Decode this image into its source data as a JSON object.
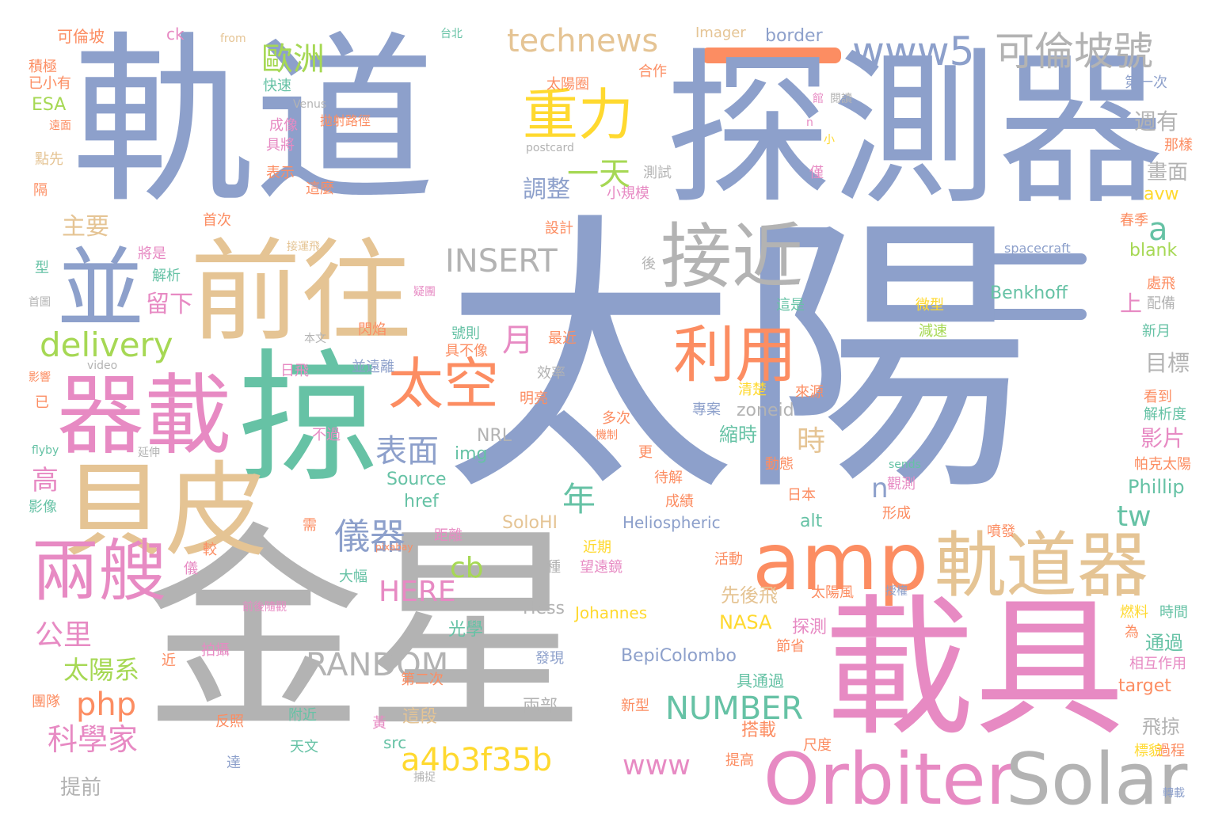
{
  "colors": {
    "blue": "#8da0cb",
    "gray": "#b3b3b3",
    "tan": "#e5c494",
    "teal": "#66c2a5",
    "pink": "#e78ac3",
    "orange": "#fc8d62",
    "yellow": "#ffd92f",
    "green": "#a6d854"
  },
  "words": [
    {
      "text": "太陽",
      "color": "blue"
    },
    {
      "text": "軌道",
      "color": "blue"
    },
    {
      "text": "探測器",
      "color": "blue"
    },
    {
      "text": "金星",
      "color": "gray"
    },
    {
      "text": "載具",
      "color": "pink"
    },
    {
      "text": "掠",
      "color": "teal"
    },
    {
      "text": "前往",
      "color": "tan"
    },
    {
      "text": "貝皮",
      "color": "tan"
    },
    {
      "text": "器載",
      "color": "pink"
    },
    {
      "text": "並",
      "color": "blue"
    },
    {
      "text": "接近",
      "color": "gray"
    },
    {
      "text": "amp",
      "color": "orange"
    },
    {
      "text": "軌道器",
      "color": "tan"
    },
    {
      "text": "Orbiter",
      "color": "pink"
    },
    {
      "text": "Solar",
      "color": "gray"
    },
    {
      "text": "兩艘",
      "color": "pink"
    },
    {
      "text": "利用",
      "color": "orange"
    },
    {
      "text": "太空",
      "color": "orange"
    },
    {
      "text": "重力",
      "color": "yellow"
    },
    {
      "text": "一天",
      "color": "green"
    },
    {
      "text": "www5",
      "color": "blue"
    },
    {
      "text": "可倫坡號",
      "color": "gray"
    },
    {
      "text": "technews",
      "color": "tan"
    },
    {
      "text": "歐洲",
      "color": "green"
    },
    {
      "text": "delivery",
      "color": "green"
    },
    {
      "text": "INSERT",
      "color": "gray"
    },
    {
      "text": "表面",
      "color": "blue"
    },
    {
      "text": "儀器",
      "color": "blue"
    },
    {
      "text": "a4b3f35b",
      "color": "yellow"
    },
    {
      "text": "RANDOM",
      "color": "gray"
    },
    {
      "text": "NUMBER",
      "color": "teal"
    },
    {
      "text": "www",
      "color": "pink"
    },
    {
      "text": "HERE",
      "color": "pink"
    },
    {
      "text": "php",
      "color": "orange"
    },
    {
      "text": "cb",
      "color": "green"
    },
    {
      "text": "科學家",
      "color": "pink"
    },
    {
      "text": "公里",
      "color": "pink"
    },
    {
      "text": "太陽系",
      "color": "green"
    },
    {
      "text": "年",
      "color": "teal"
    },
    {
      "text": "tw",
      "color": "teal"
    },
    {
      "text": "a",
      "color": "teal"
    },
    {
      "text": "n",
      "color": "blue"
    },
    {
      "text": "時",
      "color": "tan"
    },
    {
      "text": "月",
      "color": "pink"
    },
    {
      "text": "調整",
      "color": "blue"
    },
    {
      "text": "主要",
      "color": "tan"
    },
    {
      "text": "留下",
      "color": "pink"
    },
    {
      "text": "高",
      "color": "pink"
    },
    {
      "text": "週有",
      "color": "gray"
    },
    {
      "text": "畫面",
      "color": "gray"
    },
    {
      "text": "目標",
      "color": "gray"
    },
    {
      "text": "影片",
      "color": "pink"
    },
    {
      "text": "上",
      "color": "pink"
    },
    {
      "text": "Benkhoff",
      "color": "teal"
    },
    {
      "text": "spacecraft",
      "color": "blue"
    },
    {
      "text": "blank",
      "color": "green"
    },
    {
      "text": "Phillip",
      "color": "teal"
    },
    {
      "text": "BepiColombo",
      "color": "blue"
    },
    {
      "text": "Heliospheric",
      "color": "blue"
    },
    {
      "text": "SoloHI",
      "color": "tan"
    },
    {
      "text": "Source",
      "color": "teal"
    },
    {
      "text": "href",
      "color": "teal"
    },
    {
      "text": "img",
      "color": "teal"
    },
    {
      "text": "zoneid",
      "color": "gray"
    },
    {
      "text": "縮時",
      "color": "teal"
    },
    {
      "text": "Johannes",
      "color": "yellow"
    },
    {
      "text": "Hess",
      "color": "gray"
    },
    {
      "text": "NASA",
      "color": "yellow"
    },
    {
      "text": "探測",
      "color": "pink"
    },
    {
      "text": "先後飛",
      "color": "tan"
    },
    {
      "text": "光學",
      "color": "teal"
    },
    {
      "text": "target",
      "color": "orange"
    },
    {
      "text": "飛掠",
      "color": "gray"
    },
    {
      "text": "通過",
      "color": "teal"
    },
    {
      "text": "提前",
      "color": "gray"
    },
    {
      "text": "這段",
      "color": "tan"
    },
    {
      "text": "搭載",
      "color": "orange"
    },
    {
      "text": "具通過",
      "color": "teal"
    },
    {
      "text": "兩部",
      "color": "gray"
    },
    {
      "text": "alt",
      "color": "teal"
    },
    {
      "text": "src",
      "color": "teal"
    },
    {
      "text": "border",
      "color": "blue"
    },
    {
      "text": "Imager",
      "color": "tan"
    },
    {
      "text": "ck",
      "color": "pink"
    },
    {
      "text": "可倫坡",
      "color": "orange"
    },
    {
      "text": "ESA",
      "color": "green"
    },
    {
      "text": "avw",
      "color": "yellow"
    },
    {
      "text": "postcard",
      "color": "gray"
    },
    {
      "text": "Venus",
      "color": "gray"
    },
    {
      "text": "NRL",
      "color": "gray"
    },
    {
      "text": "video",
      "color": "gray"
    },
    {
      "text": "pixabay",
      "color": "orange"
    },
    {
      "text": "sends",
      "color": "teal"
    },
    {
      "text": "flyby",
      "color": "teal"
    },
    {
      "text": "from",
      "color": "tan"
    },
    {
      "text": "台北",
      "color": "teal"
    },
    {
      "text": "太陽圈",
      "color": "orange"
    },
    {
      "text": "合作",
      "color": "orange"
    },
    {
      "text": "快速",
      "color": "teal"
    },
    {
      "text": "成像",
      "color": "pink"
    },
    {
      "text": "拋射路徑",
      "color": "orange"
    },
    {
      "text": "具將",
      "color": "pink"
    },
    {
      "text": "表示",
      "color": "orange"
    },
    {
      "text": "這麼",
      "color": "orange"
    },
    {
      "text": "小規模",
      "color": "pink"
    },
    {
      "text": "測試",
      "color": "gray"
    },
    {
      "text": "首次",
      "color": "orange"
    },
    {
      "text": "設計",
      "color": "orange"
    },
    {
      "text": "解析",
      "color": "teal"
    },
    {
      "text": "將是",
      "color": "pink"
    },
    {
      "text": "第一次",
      "color": "blue"
    },
    {
      "text": "那樣",
      "color": "orange"
    },
    {
      "text": "春季",
      "color": "orange"
    },
    {
      "text": "處飛",
      "color": "orange"
    },
    {
      "text": "配備",
      "color": "gray"
    },
    {
      "text": "新月",
      "color": "teal"
    },
    {
      "text": "看到",
      "color": "orange"
    },
    {
      "text": "解析度",
      "color": "teal"
    },
    {
      "text": "帕克太陽",
      "color": "orange"
    },
    {
      "text": "時間",
      "color": "teal"
    },
    {
      "text": "相互作用",
      "color": "pink"
    },
    {
      "text": "過程",
      "color": "orange"
    },
    {
      "text": "標貌",
      "color": "yellow"
    },
    {
      "text": "轉載",
      "color": "blue"
    },
    {
      "text": "燃料",
      "color": "yellow"
    },
    {
      "text": "為",
      "color": "orange"
    },
    {
      "text": "授權",
      "color": "blue"
    },
    {
      "text": "太陽風",
      "color": "orange"
    },
    {
      "text": "節省",
      "color": "orange"
    },
    {
      "text": "尺度",
      "color": "orange"
    },
    {
      "text": "提高",
      "color": "orange"
    },
    {
      "text": "捕捉",
      "color": "gray"
    },
    {
      "text": "天文",
      "color": "teal"
    },
    {
      "text": "附近",
      "color": "teal"
    },
    {
      "text": "反照",
      "color": "orange"
    },
    {
      "text": "第二次",
      "color": "orange"
    },
    {
      "text": "新型",
      "color": "orange"
    },
    {
      "text": "發現",
      "color": "blue"
    },
    {
      "text": "拍攝",
      "color": "pink"
    },
    {
      "text": "近",
      "color": "orange"
    },
    {
      "text": "團隊",
      "color": "orange"
    },
    {
      "text": "達",
      "color": "blue"
    },
    {
      "text": "黃",
      "color": "pink"
    },
    {
      "text": "一種",
      "color": "gray"
    },
    {
      "text": "望遠鏡",
      "color": "pink"
    },
    {
      "text": "前後隨觀",
      "color": "pink"
    },
    {
      "text": "大幅",
      "color": "teal"
    },
    {
      "text": "距離",
      "color": "pink"
    },
    {
      "text": "近期",
      "color": "yellow"
    },
    {
      "text": "需",
      "color": "orange"
    },
    {
      "text": "較",
      "color": "orange"
    },
    {
      "text": "儀",
      "color": "pink"
    },
    {
      "text": "活動",
      "color": "orange"
    },
    {
      "text": "噴發",
      "color": "orange"
    },
    {
      "text": "形成",
      "color": "orange"
    },
    {
      "text": "日本",
      "color": "orange"
    },
    {
      "text": "觀測",
      "color": "pink"
    },
    {
      "text": "成績",
      "color": "orange"
    },
    {
      "text": "待解",
      "color": "orange"
    },
    {
      "text": "更",
      "color": "orange"
    },
    {
      "text": "機制",
      "color": "orange"
    },
    {
      "text": "多次",
      "color": "orange"
    },
    {
      "text": "不過",
      "color": "pink"
    },
    {
      "text": "動態",
      "color": "orange"
    },
    {
      "text": "專案",
      "color": "blue"
    },
    {
      "text": "清楚",
      "color": "yellow"
    },
    {
      "text": "來源",
      "color": "orange"
    },
    {
      "text": "效率",
      "color": "gray"
    },
    {
      "text": "明亮",
      "color": "orange"
    },
    {
      "text": "並遠離",
      "color": "blue"
    },
    {
      "text": "日飛",
      "color": "pink"
    },
    {
      "text": "具不像",
      "color": "orange"
    },
    {
      "text": "號則",
      "color": "teal"
    },
    {
      "text": "最近",
      "color": "orange"
    },
    {
      "text": "閃焰",
      "color": "orange"
    },
    {
      "text": "本文",
      "color": "gray"
    },
    {
      "text": "疑團",
      "color": "pink"
    },
    {
      "text": "接運飛",
      "color": "tan"
    },
    {
      "text": "後",
      "color": "gray"
    },
    {
      "text": "首圖",
      "color": "gray"
    },
    {
      "text": "型",
      "color": "teal"
    },
    {
      "text": "影像",
      "color": "teal"
    },
    {
      "text": "延伸",
      "color": "gray"
    },
    {
      "text": "點先",
      "color": "tan"
    },
    {
      "text": "隔",
      "color": "orange"
    },
    {
      "text": "遠面",
      "color": "orange"
    },
    {
      "text": "積極",
      "color": "orange"
    },
    {
      "text": "已小有",
      "color": "orange"
    },
    {
      "text": "已",
      "color": "orange"
    },
    {
      "text": "影響",
      "color": "orange"
    },
    {
      "text": "這是",
      "color": "teal"
    },
    {
      "text": "微型",
      "color": "yellow"
    },
    {
      "text": "減速",
      "color": "green"
    },
    {
      "text": "館",
      "color": "pink"
    },
    {
      "text": "閱讀",
      "color": "gray"
    },
    {
      "text": "n",
      "color": "pink"
    },
    {
      "text": "小",
      "color": "yellow"
    },
    {
      "text": "僅",
      "color": "pink"
    }
  ]
}
